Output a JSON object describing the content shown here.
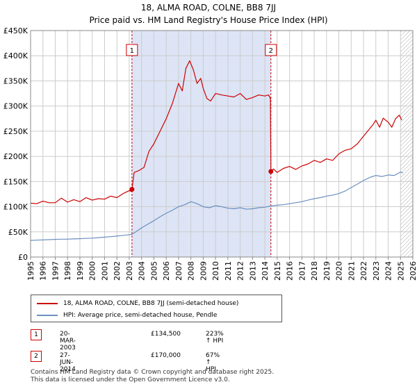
{
  "title": "18, ALMA ROAD, COLNE, BB8 7JJ",
  "subtitle": "Price paid vs. HM Land Registry's House Price Index (HPI)",
  "colors": {
    "property": "#cc0000",
    "hpi": "#6a8fc0",
    "shade": "#dde4f5",
    "grid": "#cccccc"
  },
  "legend": {
    "property_label": "18, ALMA ROAD, COLNE, BB8 7JJ (semi-detached house)",
    "hpi_label": "HPI: Average price, semi-detached house, Pendle"
  },
  "sales": [
    {
      "marker": "1",
      "date": "20-MAR-2003",
      "price": "£134,500",
      "hpi_change": "223% ↑ HPI"
    },
    {
      "marker": "2",
      "date": "27-JUN-2014",
      "price": "£170,000",
      "hpi_change": "67% ↑ HPI"
    }
  ],
  "footer": {
    "line1": "Contains HM Land Registry data © Crown copyright and database right 2025.",
    "line2": "This data is licensed under the Open Government Licence v3.0."
  },
  "chart_data": {
    "type": "line",
    "title": "18, ALMA ROAD, COLNE, BB8 7JJ",
    "subtitle": "Price paid vs. HM Land Registry's House Price Index (HPI)",
    "xlim": [
      1995,
      2026
    ],
    "ylim": [
      0,
      450000
    ],
    "x_ticks": [
      1995,
      1996,
      1997,
      1998,
      1999,
      2000,
      2001,
      2002,
      2003,
      2004,
      2005,
      2006,
      2007,
      2008,
      2009,
      2010,
      2011,
      2012,
      2013,
      2014,
      2015,
      2016,
      2017,
      2018,
      2019,
      2020,
      2021,
      2022,
      2023,
      2024,
      2025,
      2026
    ],
    "y_ticks": [
      {
        "value": 0,
        "label": "£0"
      },
      {
        "value": 50000,
        "label": "£50K"
      },
      {
        "value": 100000,
        "label": "£100K"
      },
      {
        "value": 150000,
        "label": "£150K"
      },
      {
        "value": 200000,
        "label": "£200K"
      },
      {
        "value": 250000,
        "label": "£250K"
      },
      {
        "value": 300000,
        "label": "£300K"
      },
      {
        "value": 350000,
        "label": "£350K"
      },
      {
        "value": 400000,
        "label": "£400K"
      },
      {
        "value": 450000,
        "label": "£450K"
      }
    ],
    "grid": true,
    "shaded_period": [
      2003.22,
      2014.49
    ],
    "forecast_hatch_from": 2025.0,
    "sale_markers": [
      {
        "label": "1",
        "x": 2003.22,
        "y": 134500
      },
      {
        "label": "2",
        "x": 2014.49,
        "y": 170000
      }
    ],
    "series": [
      {
        "name": "18, ALMA ROAD, COLNE, BB8 7JJ (semi-detached house)",
        "color": "#cc0000",
        "x": [
          1995.0,
          1995.5,
          1996.0,
          1996.5,
          1997.0,
          1997.5,
          1998.0,
          1998.5,
          1999.0,
          1999.5,
          2000.0,
          2000.5,
          2001.0,
          2001.5,
          2002.0,
          2002.5,
          2003.0,
          2003.2,
          2003.22,
          2003.4,
          2003.8,
          2004.2,
          2004.6,
          2005.0,
          2005.5,
          2006.0,
          2006.5,
          2007.0,
          2007.3,
          2007.6,
          2007.9,
          2008.2,
          2008.5,
          2008.8,
          2009.0,
          2009.3,
          2009.6,
          2010.0,
          2010.5,
          2011.0,
          2011.5,
          2012.0,
          2012.5,
          2013.0,
          2013.5,
          2014.0,
          2014.3,
          2014.45,
          2014.49,
          2014.7,
          2015.0,
          2015.5,
          2016.0,
          2016.5,
          2017.0,
          2017.5,
          2018.0,
          2018.5,
          2019.0,
          2019.5,
          2020.0,
          2020.5,
          2021.0,
          2021.5,
          2022.0,
          2022.5,
          2022.8,
          2023.0,
          2023.3,
          2023.6,
          2024.0,
          2024.3,
          2024.6,
          2024.9,
          2025.1
        ],
        "y": [
          107000,
          106000,
          111000,
          108000,
          108000,
          117000,
          109000,
          114000,
          110000,
          118000,
          113000,
          116000,
          115000,
          121000,
          118000,
          126000,
          132000,
          130000,
          134500,
          168000,
          172000,
          178000,
          210000,
          225000,
          250000,
          275000,
          305000,
          345000,
          330000,
          375000,
          390000,
          372000,
          345000,
          355000,
          335000,
          315000,
          310000,
          325000,
          322000,
          320000,
          318000,
          325000,
          313000,
          317000,
          322000,
          320000,
          322000,
          315000,
          170000,
          175000,
          168000,
          176000,
          180000,
          174000,
          181000,
          185000,
          192000,
          188000,
          195000,
          192000,
          205000,
          212000,
          215000,
          225000,
          240000,
          255000,
          264000,
          272000,
          258000,
          276000,
          268000,
          258000,
          275000,
          282000,
          272000
        ]
      },
      {
        "name": "HPI: Average price, semi-detached house, Pendle",
        "color": "#6a8fc0",
        "x": [
          1995.0,
          1995.5,
          1996.0,
          1996.5,
          1997.0,
          1997.5,
          1998.0,
          1998.5,
          1999.0,
          1999.5,
          2000.0,
          2000.5,
          2001.0,
          2001.5,
          2002.0,
          2002.5,
          2003.0,
          2003.22,
          2003.5,
          2004.0,
          2004.5,
          2005.0,
          2005.5,
          2006.0,
          2006.5,
          2007.0,
          2007.5,
          2008.0,
          2008.5,
          2009.0,
          2009.5,
          2010.0,
          2010.5,
          2011.0,
          2011.5,
          2012.0,
          2012.5,
          2013.0,
          2013.5,
          2014.0,
          2014.49,
          2015.0,
          2015.5,
          2016.0,
          2016.5,
          2017.0,
          2017.5,
          2018.0,
          2018.5,
          2019.0,
          2019.5,
          2020.0,
          2020.5,
          2021.0,
          2021.5,
          2022.0,
          2022.5,
          2023.0,
          2023.5,
          2024.0,
          2024.5,
          2025.0,
          2025.2
        ],
        "y": [
          33000,
          33500,
          34000,
          34500,
          35000,
          35500,
          35500,
          36000,
          36500,
          37000,
          37500,
          38500,
          39500,
          40500,
          41500,
          43000,
          44500,
          45000,
          49500,
          58000,
          65000,
          72000,
          80000,
          87000,
          93000,
          100000,
          104000,
          110000,
          106000,
          100000,
          98000,
          102000,
          100000,
          97000,
          96000,
          98000,
          95000,
          96000,
          98000,
          99000,
          101500,
          103000,
          104000,
          106000,
          108000,
          110000,
          113000,
          116000,
          118000,
          121000,
          123000,
          126000,
          131000,
          138000,
          145000,
          152000,
          158000,
          162000,
          160000,
          163000,
          162000,
          169000,
          167000
        ]
      }
    ]
  }
}
